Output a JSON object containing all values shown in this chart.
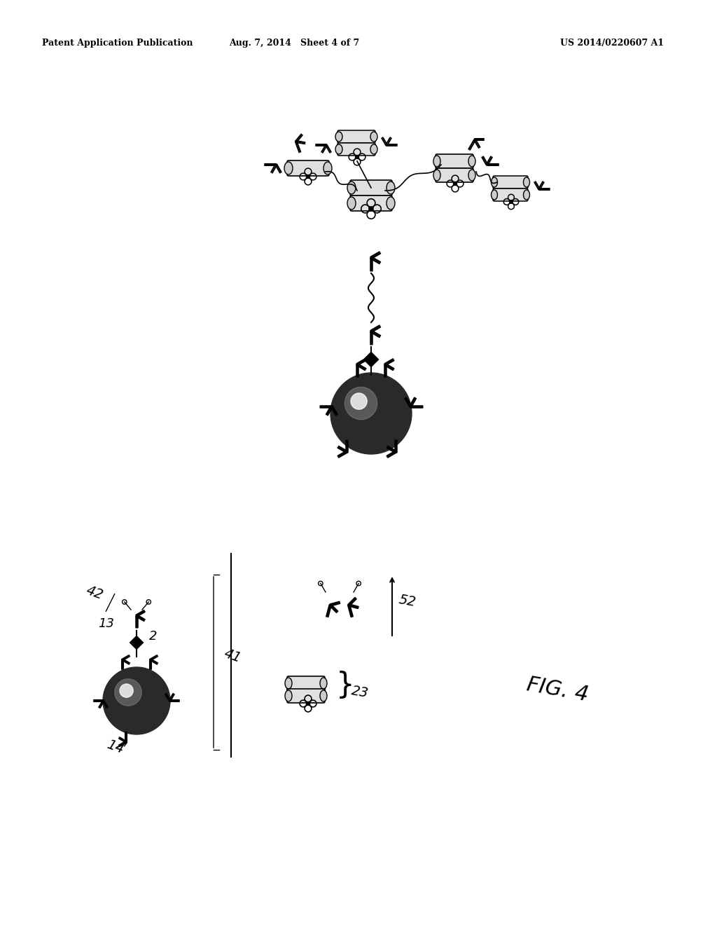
{
  "background_color": "#ffffff",
  "header_left": "Patent Application Publication",
  "header_center": "Aug. 7, 2014   Sheet 4 of 7",
  "header_right": "US 2014/0220607 A1",
  "fig_label": "FIG. 4",
  "figsize": [
    10.24,
    13.2
  ],
  "dpi": 100
}
